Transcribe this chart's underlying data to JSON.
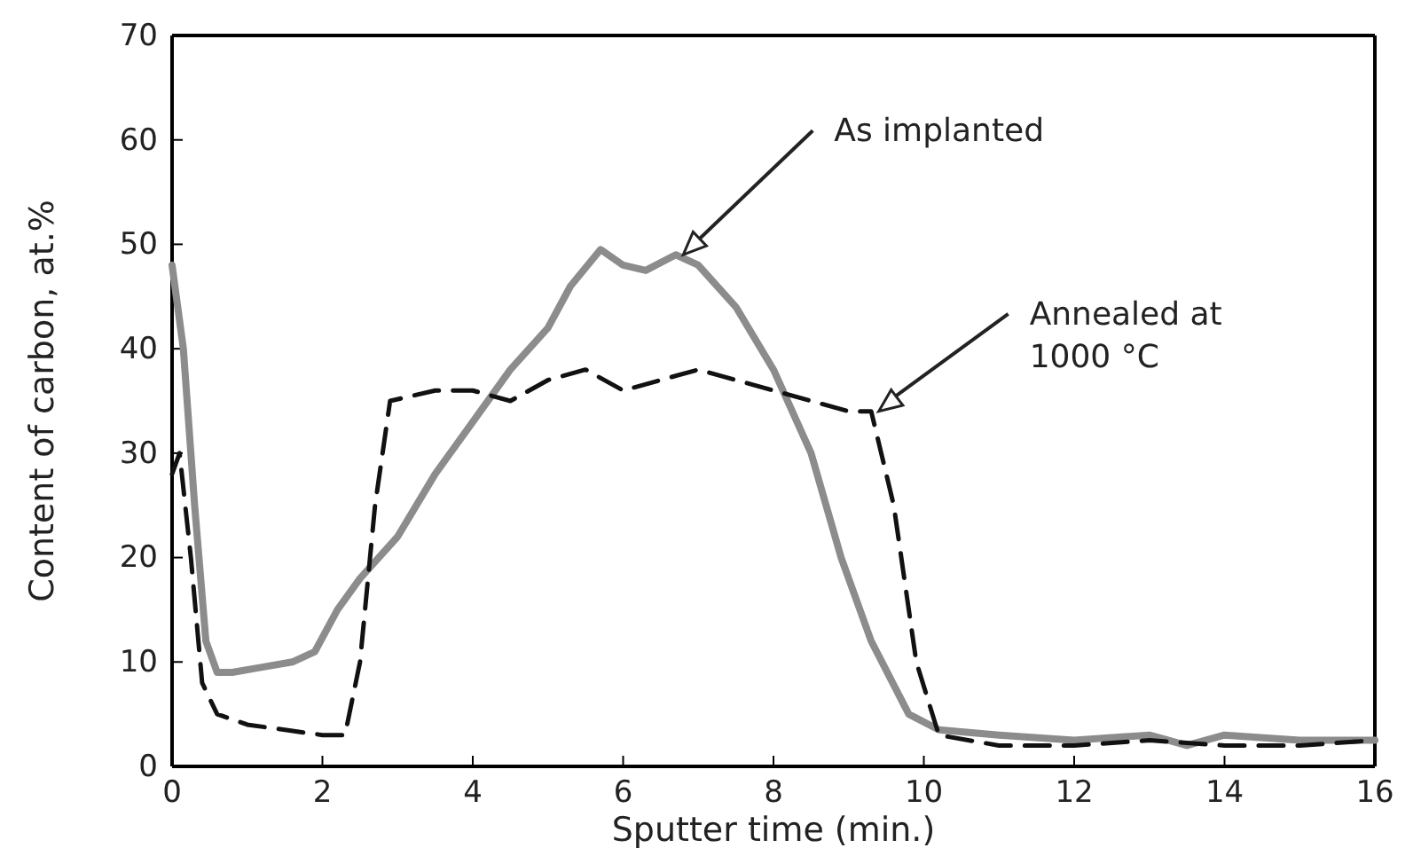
{
  "chart_data": {
    "type": "line",
    "xlabel": "Sputter time (min.)",
    "ylabel": "Content of carbon, at.%",
    "xlim": [
      0,
      16
    ],
    "ylim": [
      0,
      70
    ],
    "xticks": [
      0,
      2,
      4,
      6,
      8,
      10,
      12,
      14,
      16
    ],
    "yticks": [
      0,
      10,
      20,
      30,
      40,
      50,
      60,
      70
    ],
    "grid": false,
    "series": [
      {
        "color": "#8c8c8c",
        "line_style": "solid",
        "x": [
          0,
          0.15,
          0.3,
          0.45,
          0.6,
          0.8,
          1.2,
          1.6,
          1.9,
          2.2,
          2.5,
          3,
          3.5,
          4,
          4.5,
          5,
          5.3,
          5.7,
          6,
          6.3,
          6.7,
          7,
          7.5,
          8,
          8.5,
          8.9,
          9.3,
          9.8,
          10.2,
          11,
          12,
          13,
          13.5,
          14,
          15,
          16
        ],
        "values": [
          48,
          40,
          25,
          12,
          9,
          9,
          9.5,
          10,
          11,
          15,
          18,
          22,
          28,
          33,
          38,
          42,
          46,
          49.5,
          48,
          47.5,
          49,
          48,
          44,
          38,
          30,
          20,
          12,
          5,
          3.5,
          3,
          2.5,
          3,
          2,
          3,
          2.5,
          2.5
        ]
      },
      {
        "color": "#111111",
        "line_style": "dashed",
        "x": [
          0,
          0.1,
          0.25,
          0.4,
          0.6,
          1,
          1.5,
          2,
          2.3,
          2.5,
          2.7,
          2.9,
          3.5,
          4,
          4.5,
          5,
          5.5,
          6,
          6.5,
          7,
          7.5,
          8,
          8.5,
          9,
          9.3,
          9.6,
          9.9,
          10.2,
          11,
          12,
          13,
          14,
          15,
          16
        ],
        "values": [
          28,
          30,
          20,
          8,
          5,
          4,
          3.5,
          3,
          3,
          10,
          25,
          35,
          36,
          36,
          35,
          37,
          38,
          36,
          37,
          38,
          37,
          36,
          35,
          34,
          34,
          25,
          10,
          3,
          2,
          2,
          2.5,
          2,
          2,
          2.5
        ]
      }
    ],
    "annotations": [
      {
        "text": "As implanted",
        "x": 6.8,
        "y": 49
      },
      {
        "text": "Annealed at\n1000 °C",
        "x": 9.4,
        "y": 34
      }
    ]
  }
}
